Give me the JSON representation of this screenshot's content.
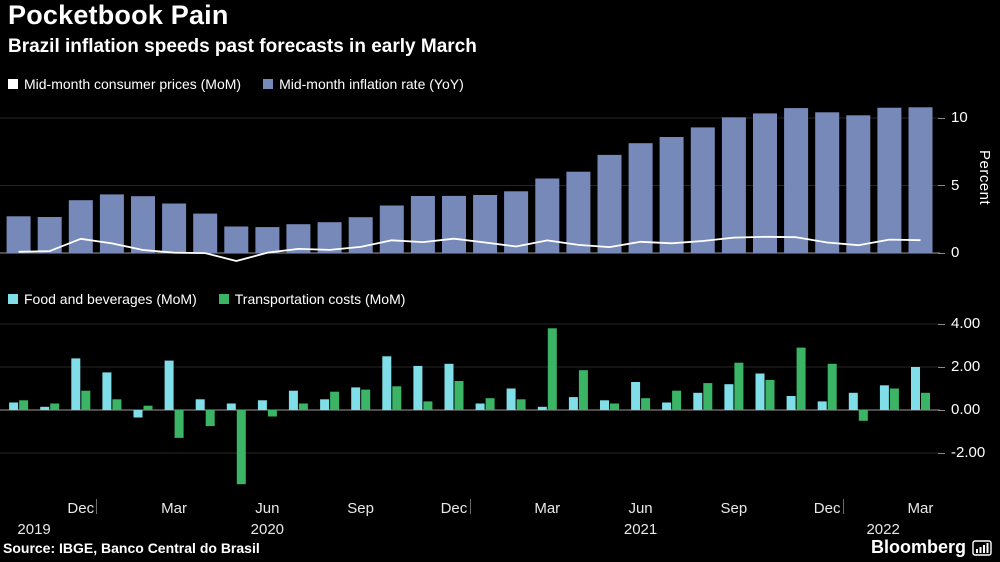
{
  "header": {
    "title": "Pocketbook Pain",
    "subtitle": "Brazil inflation speeds past forecasts in early March"
  },
  "source": "Source: IBGE, Banco Central do Brasil",
  "logo_text": "Bloomberg",
  "colors": {
    "background": "#000000",
    "grid": "#262626",
    "zero_line": "#9a9a9a",
    "axis_text": "#ffffff"
  },
  "top_chart": {
    "legend": [
      {
        "label": "Mid-month consumer prices (MoM)",
        "swatch": "#ffffff"
      },
      {
        "label": "Mid-month inflation rate (YoY)",
        "swatch": "#7789b8"
      }
    ],
    "y_ticks": [
      {
        "v": 10,
        "label": "10"
      },
      {
        "v": 5,
        "label": "5"
      },
      {
        "v": 0,
        "label": "0"
      }
    ],
    "y_title": "Percent"
  },
  "bottom_chart": {
    "legend": [
      {
        "label": "Food and beverages (MoM)",
        "swatch": "#7fdee8"
      },
      {
        "label": "Transportation costs (MoM)",
        "swatch": "#3bb465"
      }
    ],
    "y_ticks": [
      {
        "v": 4,
        "label": "4.00"
      },
      {
        "v": 2,
        "label": "2.00"
      },
      {
        "v": 0,
        "label": "0.00"
      },
      {
        "v": -2,
        "label": "-2.00"
      }
    ]
  },
  "x_axis": {
    "month_ticks": [
      {
        "index": 2,
        "label": "Dec"
      },
      {
        "index": 5,
        "label": "Mar"
      },
      {
        "index": 8,
        "label": "Jun"
      },
      {
        "index": 11,
        "label": "Sep"
      },
      {
        "index": 14,
        "label": "Dec"
      },
      {
        "index": 17,
        "label": "Mar"
      },
      {
        "index": 20,
        "label": "Jun"
      },
      {
        "index": 23,
        "label": "Sep"
      },
      {
        "index": 26,
        "label": "Dec"
      },
      {
        "index": 29,
        "label": "Mar"
      }
    ],
    "year_labels": [
      {
        "label": "2019",
        "at_index": 0.5
      },
      {
        "label": "2020",
        "at_index": 8
      },
      {
        "label": "2021",
        "at_index": 20
      },
      {
        "label": "2022",
        "at_index": 27.8
      }
    ],
    "year_divider_indices": [
      3,
      15,
      27
    ]
  },
  "chart_data": [
    {
      "type": "bar",
      "panel": "top",
      "title": "Mid-month inflation, Brazil",
      "ylabel": "Percent",
      "ylim": [
        -1.05,
        11.7
      ],
      "y_tick_values": [
        0,
        5,
        10
      ],
      "grid": true,
      "legend_position": "top",
      "x": [
        "Oct 2019",
        "Nov 2019",
        "Dec 2019",
        "Jan 2020",
        "Feb 2020",
        "Mar 2020",
        "Apr 2020",
        "May 2020",
        "Jun 2020",
        "Jul 2020",
        "Aug 2020",
        "Sep 2020",
        "Oct 2020",
        "Nov 2020",
        "Dec 2020",
        "Jan 2021",
        "Feb 2021",
        "Mar 2021",
        "Apr 2021",
        "May 2021",
        "Jun 2021",
        "Jul 2021",
        "Aug 2021",
        "Sep 2021",
        "Oct 2021",
        "Nov 2021",
        "Dec 2021",
        "Jan 2022",
        "Feb 2022",
        "Mar 2022"
      ],
      "series": [
        {
          "name": "Mid-month inflation rate (YoY)",
          "type": "bar",
          "color": "#7789b8",
          "values": [
            2.72,
            2.67,
            3.91,
            4.34,
            4.21,
            3.67,
            2.92,
            1.96,
            1.92,
            2.13,
            2.28,
            2.65,
            3.52,
            4.22,
            4.23,
            4.3,
            4.57,
            5.52,
            6.02,
            7.27,
            8.13,
            8.59,
            9.3,
            10.05,
            10.34,
            10.73,
            10.42,
            10.2,
            10.76,
            10.79
          ]
        },
        {
          "name": "Mid-month consumer prices (MoM)",
          "type": "line",
          "color": "#ffffff",
          "values": [
            0.09,
            0.14,
            1.05,
            0.71,
            0.22,
            0.02,
            -0.01,
            -0.59,
            0.02,
            0.3,
            0.23,
            0.45,
            0.94,
            0.81,
            1.06,
            0.78,
            0.48,
            0.93,
            0.6,
            0.44,
            0.83,
            0.72,
            0.89,
            1.14,
            1.2,
            1.17,
            0.78,
            0.58,
            0.99,
            0.95
          ]
        }
      ]
    },
    {
      "type": "bar",
      "panel": "bottom",
      "title": "Monthly change by category",
      "ylabel": "",
      "ylim": [
        -4.05,
        4.35
      ],
      "y_tick_values": [
        -2,
        0,
        2,
        4
      ],
      "grid": true,
      "legend_position": "top",
      "x": [
        "Oct 2019",
        "Nov 2019",
        "Dec 2019",
        "Jan 2020",
        "Feb 2020",
        "Mar 2020",
        "Apr 2020",
        "May 2020",
        "Jun 2020",
        "Jul 2020",
        "Aug 2020",
        "Sep 2020",
        "Oct 2020",
        "Nov 2020",
        "Dec 2020",
        "Jan 2021",
        "Feb 2021",
        "Mar 2021",
        "Apr 2021",
        "May 2021",
        "Jun 2021",
        "Jul 2021",
        "Aug 2021",
        "Sep 2021",
        "Oct 2021",
        "Nov 2021",
        "Dec 2021",
        "Jan 2022",
        "Feb 2022",
        "Mar 2022"
      ],
      "series": [
        {
          "name": "Food and beverages (MoM)",
          "type": "bar",
          "color": "#7fdee8",
          "values": [
            0.35,
            0.15,
            2.4,
            1.75,
            -0.35,
            2.3,
            0.5,
            0.3,
            0.45,
            0.9,
            0.5,
            1.05,
            2.5,
            2.05,
            2.15,
            0.3,
            1.0,
            0.15,
            0.6,
            0.45,
            1.3,
            0.35,
            0.8,
            1.2,
            1.7,
            0.65,
            0.4,
            0.8,
            1.15,
            2.0
          ]
        },
        {
          "name": "Transportation costs (MoM)",
          "type": "bar",
          "color": "#3bb465",
          "values": [
            0.45,
            0.3,
            0.9,
            0.5,
            0.2,
            -1.3,
            -0.75,
            -3.45,
            -0.3,
            0.3,
            0.85,
            0.95,
            1.1,
            0.4,
            1.35,
            0.55,
            0.5,
            3.8,
            1.85,
            0.3,
            0.55,
            0.9,
            1.25,
            2.2,
            1.4,
            2.9,
            2.15,
            -0.5,
            1.0,
            0.8
          ]
        }
      ]
    }
  ]
}
